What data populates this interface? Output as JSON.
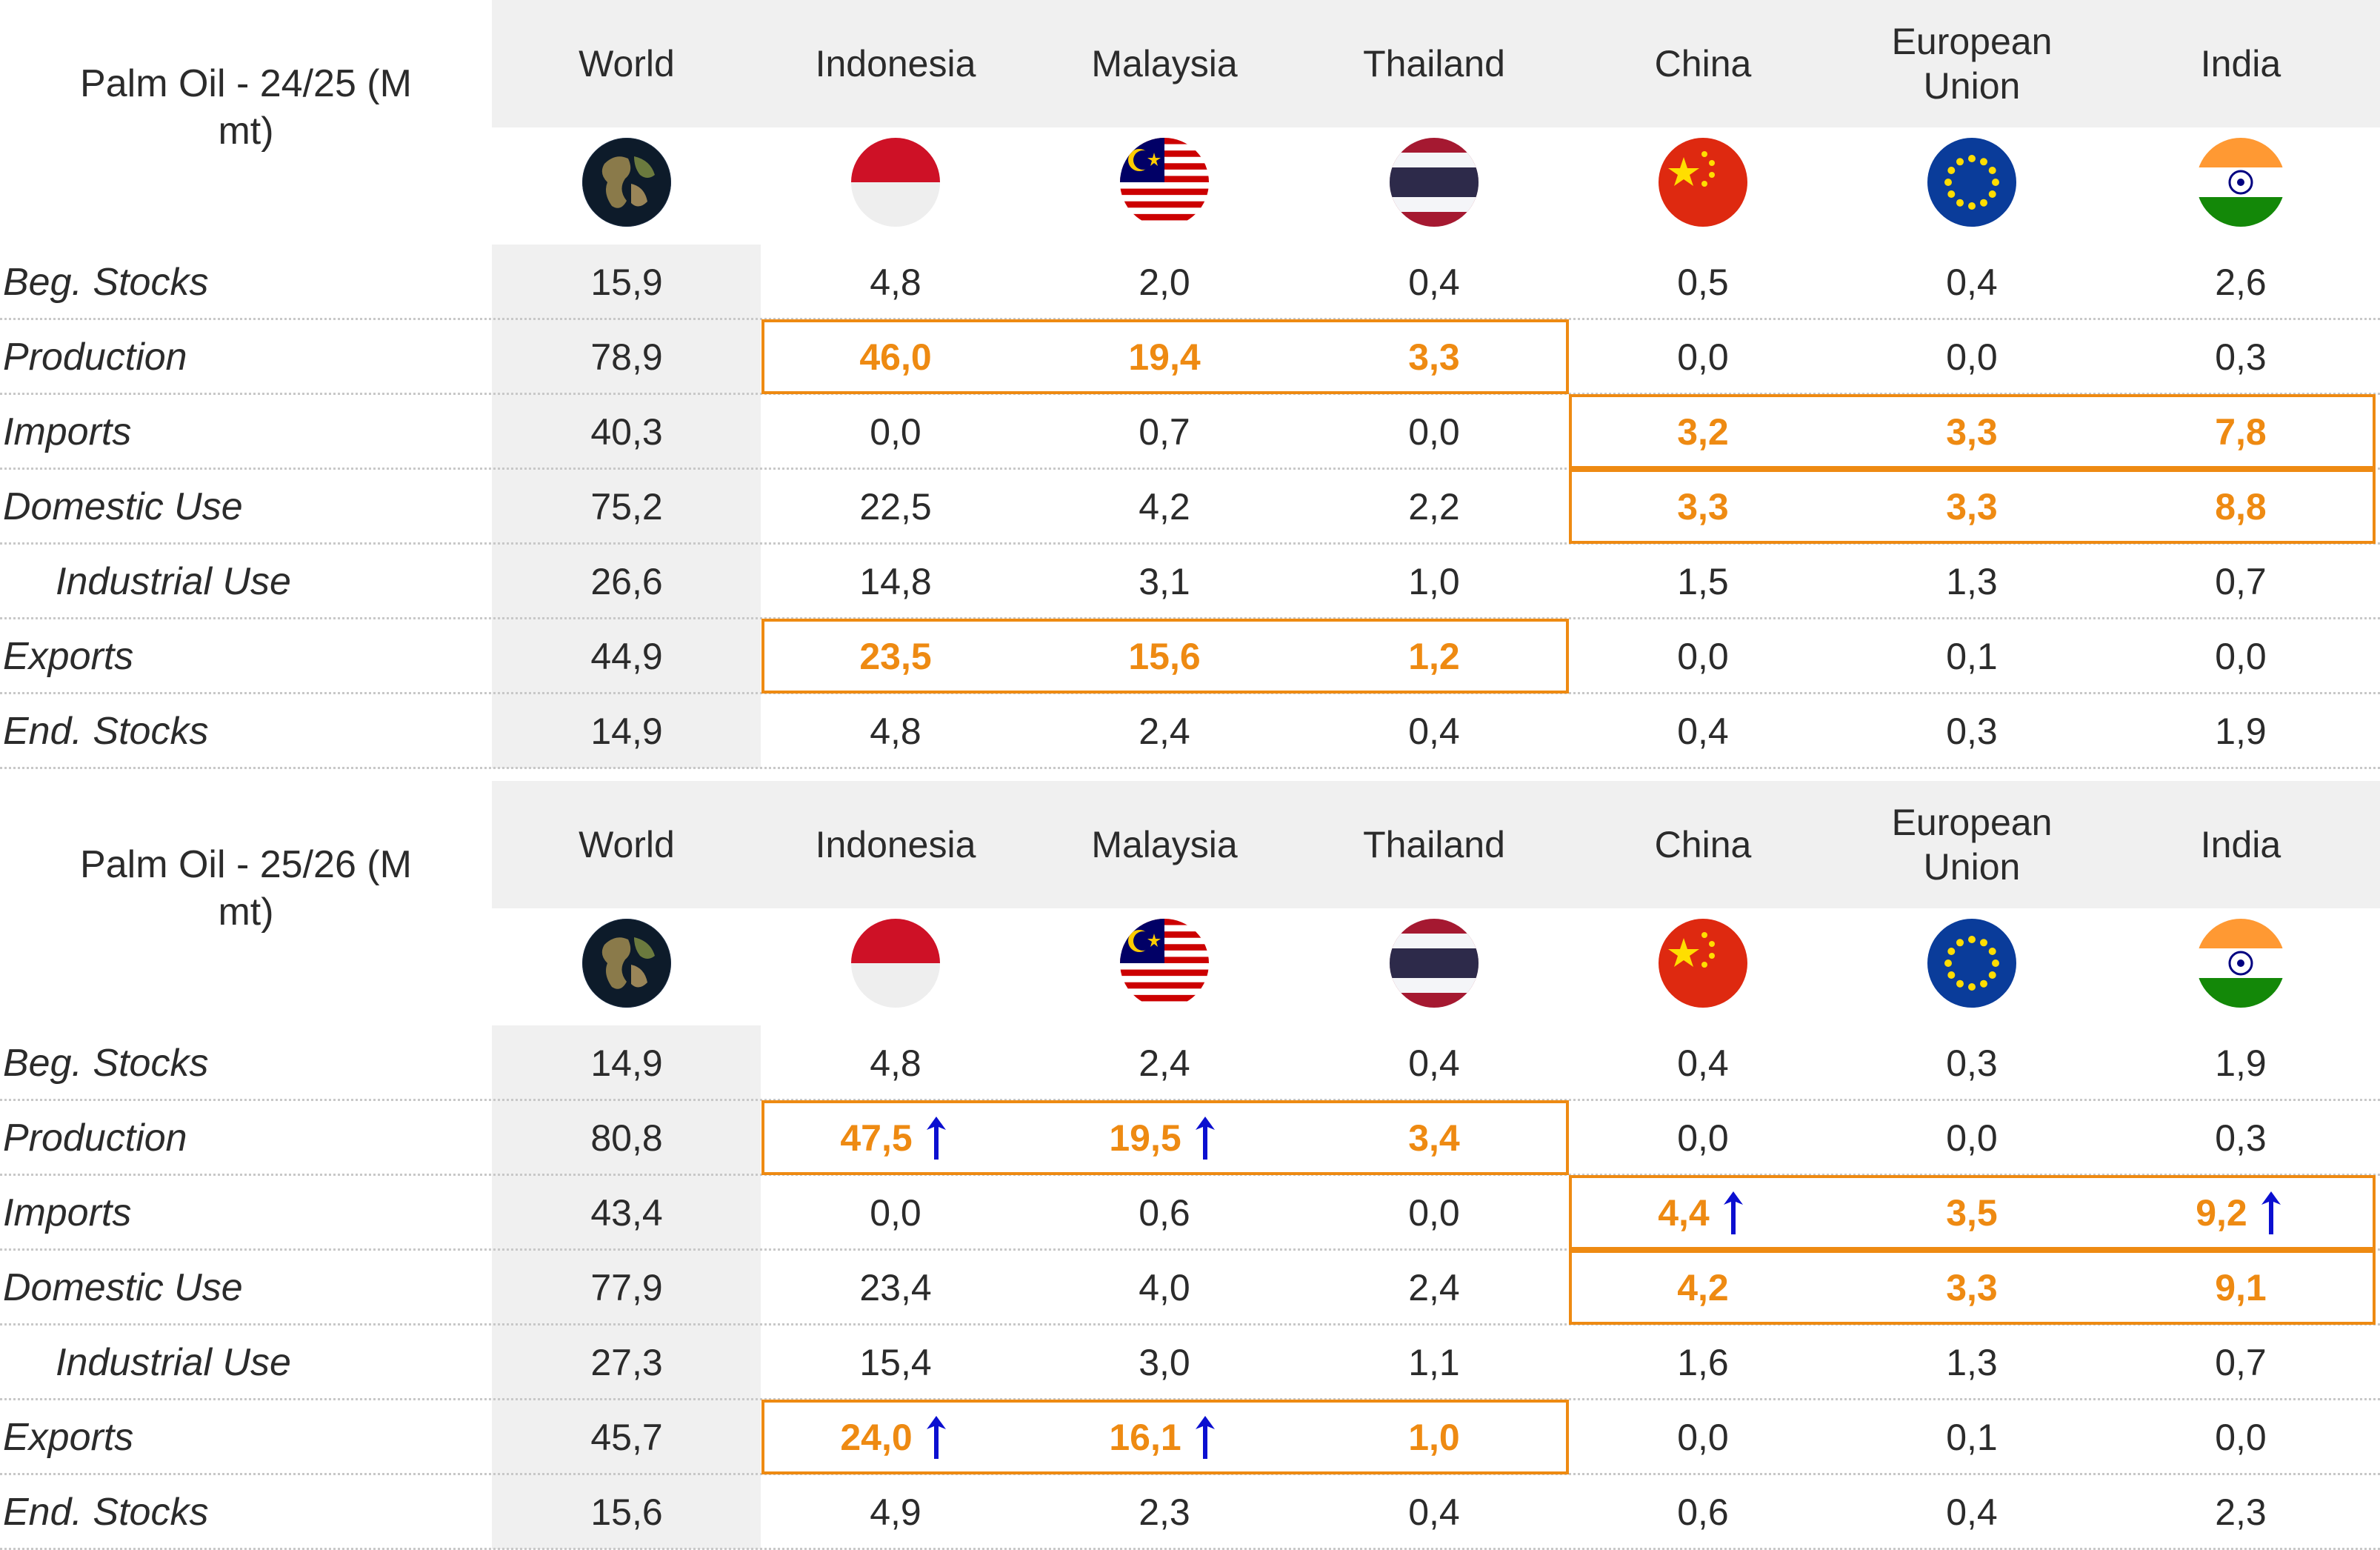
{
  "colors": {
    "highlight": "#ee8a12",
    "arrow": "#0b0fd0",
    "header_bg": "#f0f0f0"
  },
  "columns": [
    {
      "label": "World",
      "icon": "globe-icon"
    },
    {
      "label": "Indonesia",
      "icon": "indonesia-flag-icon"
    },
    {
      "label": "Malaysia",
      "icon": "malaysia-flag-icon"
    },
    {
      "label": "Thailand",
      "icon": "thailand-flag-icon"
    },
    {
      "label": "China",
      "icon": "china-flag-icon"
    },
    {
      "label": "European Union",
      "icon": "eu-flag-icon"
    },
    {
      "label": "India",
      "icon": "india-flag-icon"
    }
  ],
  "chart_data": [
    {
      "type": "table",
      "title": "Palm Oil - 24/25 (M mt)",
      "columns": [
        "World",
        "Indonesia",
        "Malaysia",
        "Thailand",
        "China",
        "European Union",
        "India"
      ],
      "rows": [
        {
          "label": "Beg. Stocks",
          "values": [
            "15,9",
            "4,8",
            "2,0",
            "0,4",
            "0,5",
            "0,4",
            "2,6"
          ],
          "highlight": [],
          "up": []
        },
        {
          "label": "Production",
          "values": [
            "78,9",
            "46,0",
            "19,4",
            "3,3",
            "0,0",
            "0,0",
            "0,3"
          ],
          "highlight": [
            1,
            2,
            3
          ],
          "up": []
        },
        {
          "label": "Imports",
          "values": [
            "40,3",
            "0,0",
            "0,7",
            "0,0",
            "3,2",
            "3,3",
            "7,8"
          ],
          "highlight": [
            4,
            5,
            6
          ],
          "up": []
        },
        {
          "label": "Domestic Use",
          "values": [
            "75,2",
            "22,5",
            "4,2",
            "2,2",
            "3,3",
            "3,3",
            "8,8"
          ],
          "highlight": [
            4,
            5,
            6
          ],
          "up": []
        },
        {
          "label": "Industrial Use",
          "values": [
            "26,6",
            "14,8",
            "3,1",
            "1,0",
            "1,5",
            "1,3",
            "0,7"
          ],
          "highlight": [],
          "up": [],
          "indent": true
        },
        {
          "label": "Exports",
          "values": [
            "44,9",
            "23,5",
            "15,6",
            "1,2",
            "0,0",
            "0,1",
            "0,0"
          ],
          "highlight": [
            1,
            2,
            3
          ],
          "up": []
        },
        {
          "label": "End. Stocks",
          "values": [
            "14,9",
            "4,8",
            "2,4",
            "0,4",
            "0,4",
            "0,3",
            "1,9"
          ],
          "highlight": [],
          "up": []
        }
      ]
    },
    {
      "type": "table",
      "title": "Palm Oil - 25/26 (M mt)",
      "columns": [
        "World",
        "Indonesia",
        "Malaysia",
        "Thailand",
        "China",
        "European Union",
        "India"
      ],
      "rows": [
        {
          "label": "Beg. Stocks",
          "values": [
            "14,9",
            "4,8",
            "2,4",
            "0,4",
            "0,4",
            "0,3",
            "1,9"
          ],
          "highlight": [],
          "up": []
        },
        {
          "label": "Production",
          "values": [
            "80,8",
            "47,5",
            "19,5",
            "3,4",
            "0,0",
            "0,0",
            "0,3"
          ],
          "highlight": [
            1,
            2,
            3
          ],
          "up": [
            1,
            2
          ]
        },
        {
          "label": "Imports",
          "values": [
            "43,4",
            "0,0",
            "0,6",
            "0,0",
            "4,4",
            "3,5",
            "9,2"
          ],
          "highlight": [
            4,
            5,
            6
          ],
          "up": [
            4,
            6
          ]
        },
        {
          "label": "Domestic Use",
          "values": [
            "77,9",
            "23,4",
            "4,0",
            "2,4",
            "4,2",
            "3,3",
            "9,1"
          ],
          "highlight": [
            4,
            5,
            6
          ],
          "up": []
        },
        {
          "label": "Industrial Use",
          "values": [
            "27,3",
            "15,4",
            "3,0",
            "1,1",
            "1,6",
            "1,3",
            "0,7"
          ],
          "highlight": [],
          "up": [],
          "indent": true
        },
        {
          "label": "Exports",
          "values": [
            "45,7",
            "24,0",
            "16,1",
            "1,0",
            "0,0",
            "0,1",
            "0,0"
          ],
          "highlight": [
            1,
            2,
            3
          ],
          "up": [
            1,
            2
          ]
        },
        {
          "label": "End. Stocks",
          "values": [
            "15,6",
            "4,9",
            "2,3",
            "0,4",
            "0,6",
            "0,4",
            "2,3"
          ],
          "highlight": [],
          "up": []
        }
      ]
    }
  ]
}
